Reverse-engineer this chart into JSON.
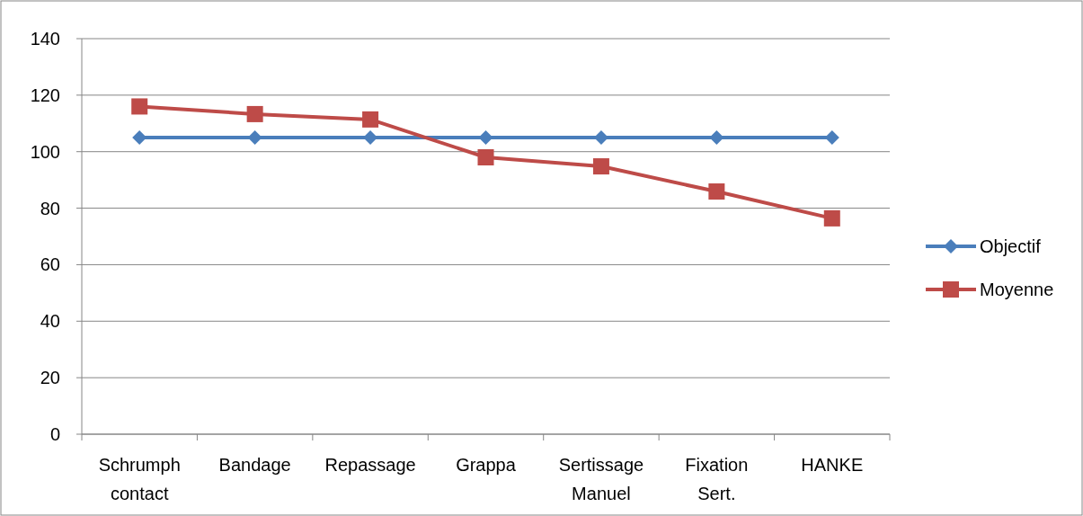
{
  "chart_data": {
    "type": "line",
    "categories": [
      "Schrumph contact",
      "Bandage",
      "Repassage",
      "Grappa",
      "Sertissage Manuel",
      "Fixation Sert.",
      "HANKE"
    ],
    "series": [
      {
        "name": "Objectif",
        "color": "#4a7ebb",
        "marker": "diamond",
        "values": [
          105,
          105,
          105,
          105,
          105,
          105,
          105
        ]
      },
      {
        "name": "Moyenne",
        "color": "#be4b48",
        "marker": "square",
        "values": [
          116,
          113.3,
          111.4,
          98,
          94.8,
          85.9,
          76.4
        ]
      }
    ],
    "ylim": [
      0,
      140
    ],
    "yticks": [
      0,
      20,
      40,
      60,
      80,
      100,
      120,
      140
    ],
    "grid": "y",
    "legend": "right"
  }
}
